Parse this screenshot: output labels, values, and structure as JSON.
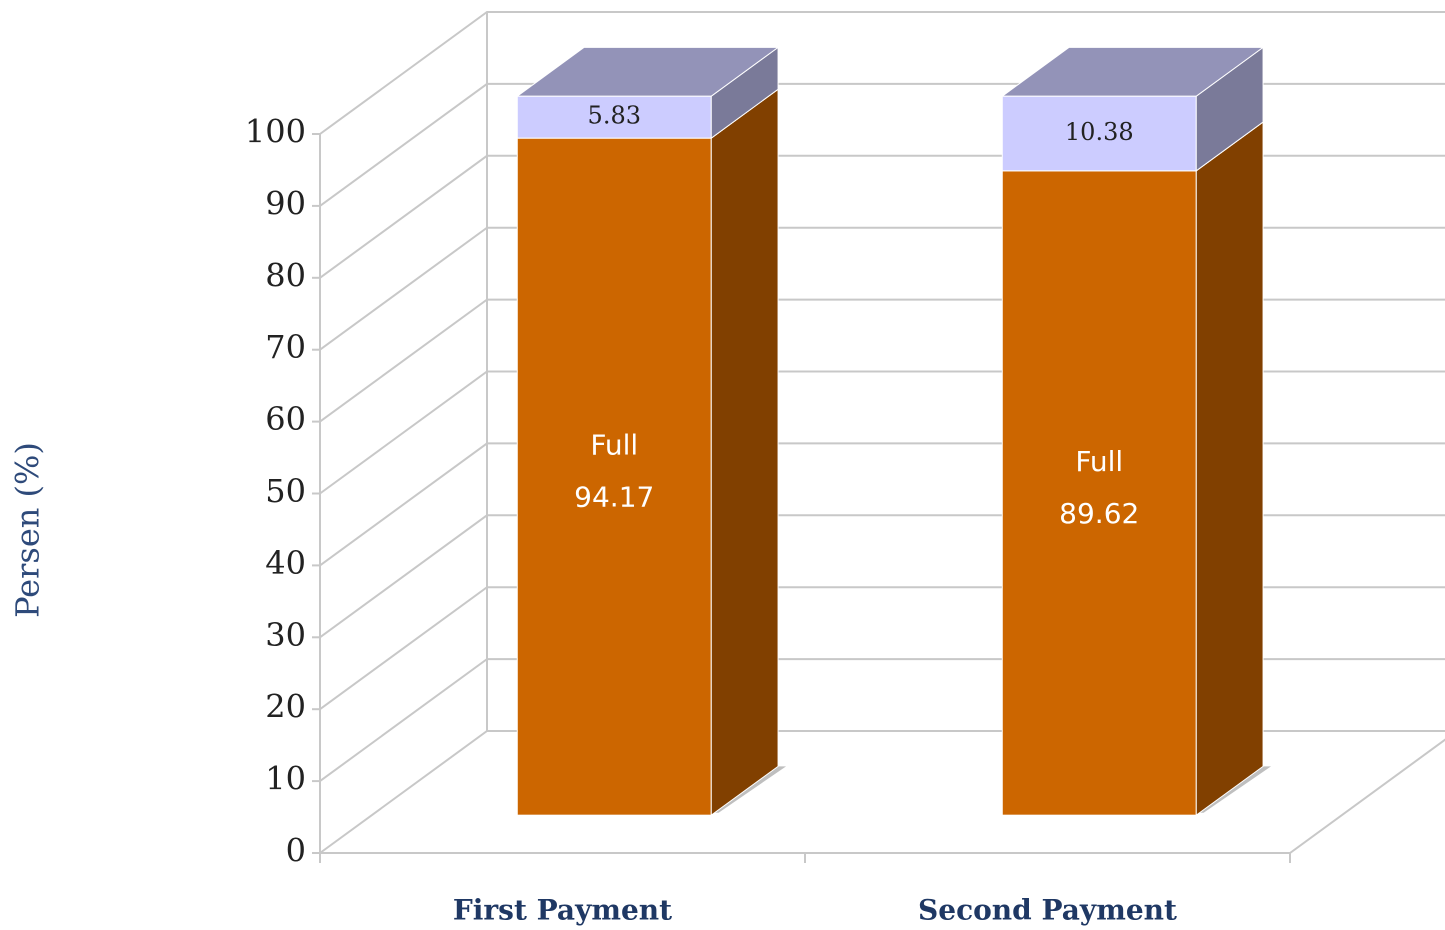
{
  "chart_data": {
    "type": "bar3d_stacked",
    "ylabel": "Persen (%)",
    "categories": [
      "First Payment",
      "Second Payment"
    ],
    "series": [
      {
        "name": "Full",
        "color": "#cc6600",
        "values": [
          94.17,
          89.62
        ]
      },
      {
        "color": "#ccccff",
        "values": [
          5.83,
          10.38
        ]
      }
    ],
    "ylim": [
      0,
      100
    ],
    "yticks": [
      0,
      10,
      20,
      30,
      40,
      50,
      60,
      70,
      80,
      90,
      100
    ],
    "grid": true
  }
}
